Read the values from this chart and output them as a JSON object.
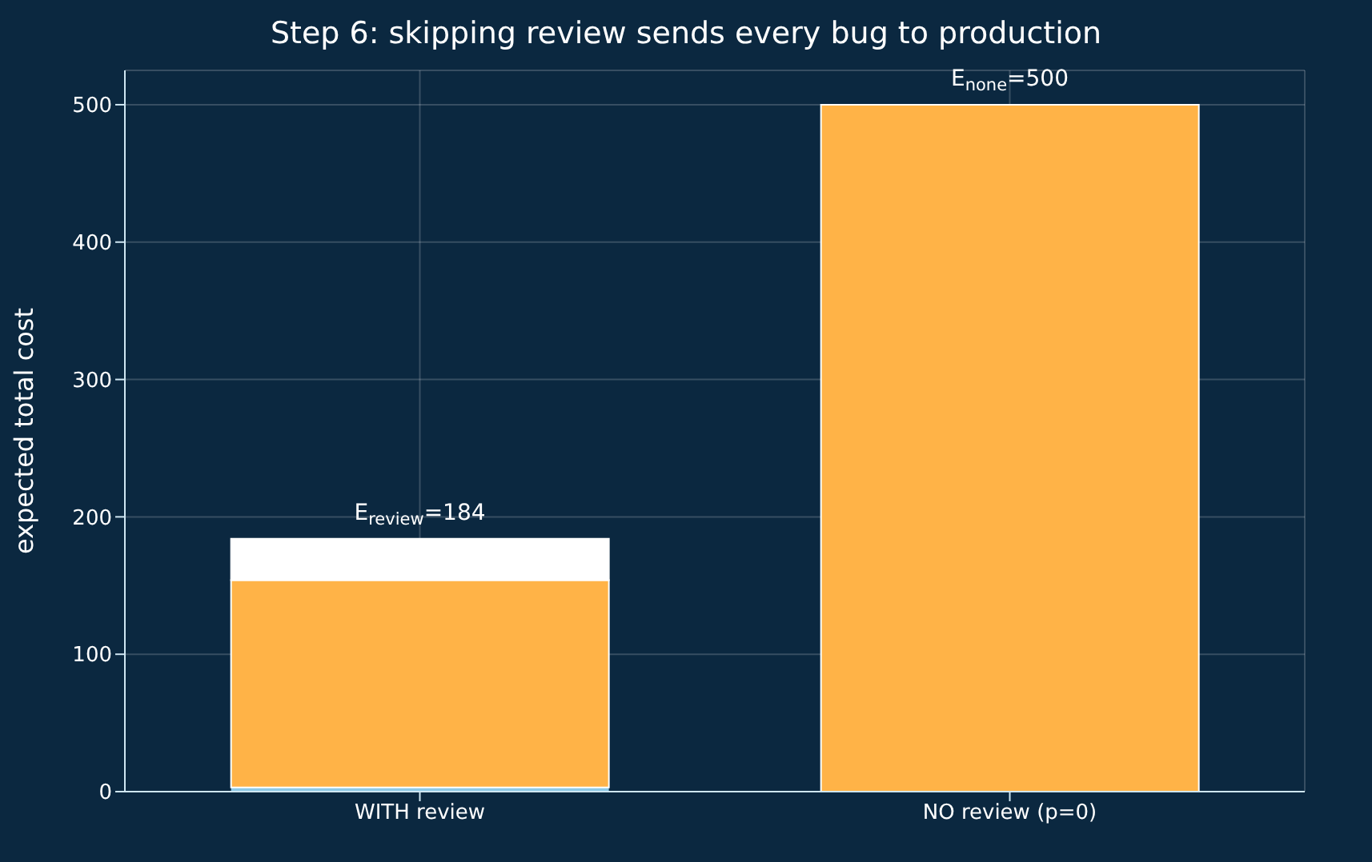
{
  "chart_data": {
    "type": "bar",
    "title": "Step 6: skipping review sends every bug to production",
    "ylabel": "expected total cost",
    "categories": [
      "WITH review",
      "NO review (p=0)"
    ],
    "stacked": true,
    "series": [
      {
        "color": "#8ecae6",
        "values": [
          3,
          0
        ]
      },
      {
        "color": "#ffb347",
        "values": [
          151,
          500
        ]
      },
      {
        "color": "#ffffff",
        "values": [
          30,
          0
        ]
      }
    ],
    "ylim": [
      0,
      525
    ],
    "yticks": [
      0,
      100,
      200,
      300,
      400,
      500
    ],
    "grid": true,
    "legend": false,
    "annotations": [
      {
        "text": "E$_{review}$=184",
        "x": "WITH review",
        "y": 184
      },
      {
        "text": "E$_{none}$=500",
        "x": "NO review (p=0)",
        "y": 500
      }
    ]
  }
}
